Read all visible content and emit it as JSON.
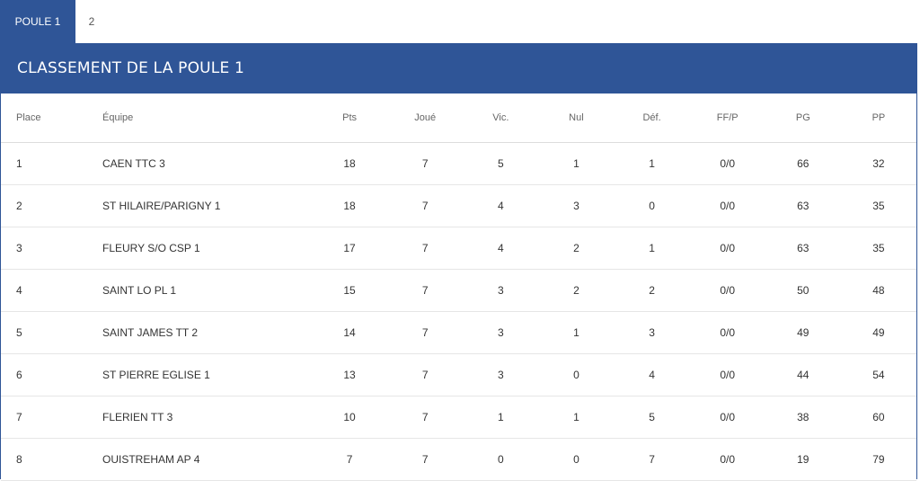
{
  "tabs": [
    {
      "label": "POULE 1",
      "active": true
    },
    {
      "label": "2",
      "active": false
    }
  ],
  "panel": {
    "title": "CLASSEMENT DE LA POULE 1"
  },
  "colors": {
    "accent": "#2f5597"
  },
  "table": {
    "headers": [
      "Place",
      "Équipe",
      "Pts",
      "Joué",
      "Vic.",
      "Nul",
      "Déf.",
      "FF/P",
      "PG",
      "PP"
    ],
    "rows": [
      [
        "1",
        "CAEN TTC 3",
        "18",
        "7",
        "5",
        "1",
        "1",
        "0/0",
        "66",
        "32"
      ],
      [
        "2",
        "ST HILAIRE/PARIGNY 1",
        "18",
        "7",
        "4",
        "3",
        "0",
        "0/0",
        "63",
        "35"
      ],
      [
        "3",
        "FLEURY S/O CSP 1",
        "17",
        "7",
        "4",
        "2",
        "1",
        "0/0",
        "63",
        "35"
      ],
      [
        "4",
        "SAINT LO PL 1",
        "15",
        "7",
        "3",
        "2",
        "2",
        "0/0",
        "50",
        "48"
      ],
      [
        "5",
        "SAINT JAMES TT 2",
        "14",
        "7",
        "3",
        "1",
        "3",
        "0/0",
        "49",
        "49"
      ],
      [
        "6",
        "ST PIERRE EGLISE 1",
        "13",
        "7",
        "3",
        "0",
        "4",
        "0/0",
        "44",
        "54"
      ],
      [
        "7",
        "FLERIEN TT 3",
        "10",
        "7",
        "1",
        "1",
        "5",
        "0/0",
        "38",
        "60"
      ],
      [
        "8",
        "OUISTREHAM AP 4",
        "7",
        "7",
        "0",
        "0",
        "7",
        "0/0",
        "19",
        "79"
      ]
    ]
  }
}
